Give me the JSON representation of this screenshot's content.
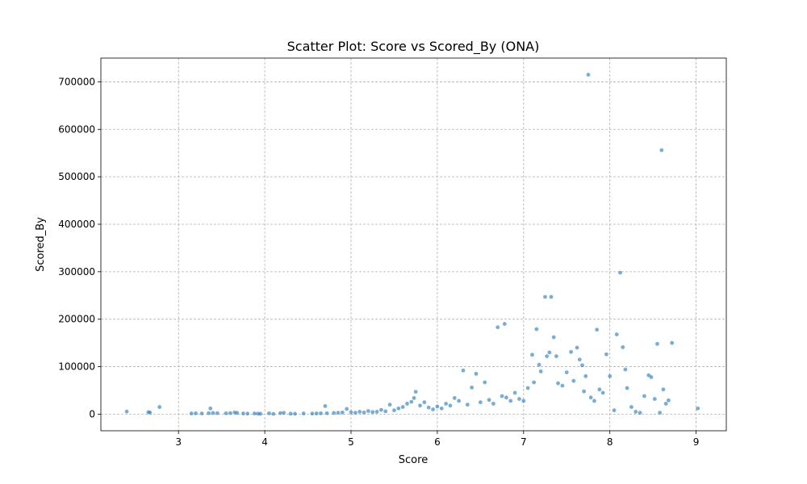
{
  "chart_data": {
    "type": "scatter",
    "title": "Scatter Plot: Score vs Scored_By (ONA)",
    "xlabel": "Score",
    "ylabel": "Scored_By",
    "xlim": [
      2.1,
      9.35
    ],
    "ylim": [
      -35000,
      750000
    ],
    "x_ticks": [
      3,
      4,
      5,
      6,
      7,
      8,
      9
    ],
    "x_tick_labels": [
      "3",
      "4",
      "5",
      "6",
      "7",
      "8",
      "9"
    ],
    "y_ticks": [
      0,
      100000,
      200000,
      300000,
      400000,
      500000,
      600000,
      700000
    ],
    "y_tick_labels": [
      "0",
      "100000",
      "200000",
      "300000",
      "400000",
      "500000",
      "600000",
      "700000"
    ],
    "grid": true,
    "marker_color": "#1f77b4",
    "series": [
      {
        "points": [
          [
            2.4,
            5500
          ],
          [
            2.65,
            4000
          ],
          [
            2.67,
            3500
          ],
          [
            2.78,
            15000
          ],
          [
            3.15,
            1500
          ],
          [
            3.2,
            1800
          ],
          [
            3.27,
            1500
          ],
          [
            3.35,
            2000
          ],
          [
            3.37,
            12000
          ],
          [
            3.4,
            2500
          ],
          [
            3.45,
            2000
          ],
          [
            3.55,
            1800
          ],
          [
            3.6,
            2200
          ],
          [
            3.65,
            3500
          ],
          [
            3.68,
            2500
          ],
          [
            3.75,
            1500
          ],
          [
            3.8,
            1200
          ],
          [
            3.88,
            1500
          ],
          [
            3.92,
            1000
          ],
          [
            3.95,
            800
          ],
          [
            4.05,
            1800
          ],
          [
            4.1,
            500
          ],
          [
            4.18,
            2200
          ],
          [
            4.22,
            2800
          ],
          [
            4.3,
            1000
          ],
          [
            4.35,
            800
          ],
          [
            4.45,
            1500
          ],
          [
            4.55,
            1200
          ],
          [
            4.6,
            1500
          ],
          [
            4.65,
            1800
          ],
          [
            4.7,
            17000
          ],
          [
            4.72,
            2000
          ],
          [
            4.8,
            2500
          ],
          [
            4.85,
            3000
          ],
          [
            4.9,
            3500
          ],
          [
            4.95,
            11000
          ],
          [
            5.0,
            4000
          ],
          [
            5.05,
            3000
          ],
          [
            5.1,
            5000
          ],
          [
            5.15,
            3500
          ],
          [
            5.2,
            6500
          ],
          [
            5.25,
            4500
          ],
          [
            5.3,
            5000
          ],
          [
            5.35,
            9000
          ],
          [
            5.4,
            6000
          ],
          [
            5.45,
            20000
          ],
          [
            5.5,
            8000
          ],
          [
            5.55,
            12000
          ],
          [
            5.6,
            15000
          ],
          [
            5.65,
            22000
          ],
          [
            5.7,
            26000
          ],
          [
            5.73,
            34000
          ],
          [
            5.75,
            47000
          ],
          [
            5.8,
            18000
          ],
          [
            5.85,
            25000
          ],
          [
            5.9,
            14000
          ],
          [
            5.95,
            10000
          ],
          [
            6.0,
            16000
          ],
          [
            6.05,
            12000
          ],
          [
            6.1,
            22000
          ],
          [
            6.15,
            18000
          ],
          [
            6.2,
            34000
          ],
          [
            6.25,
            28000
          ],
          [
            6.3,
            92000
          ],
          [
            6.35,
            20000
          ],
          [
            6.4,
            56000
          ],
          [
            6.45,
            85000
          ],
          [
            6.5,
            25000
          ],
          [
            6.55,
            67000
          ],
          [
            6.6,
            30000
          ],
          [
            6.65,
            22000
          ],
          [
            6.7,
            183000
          ],
          [
            6.75,
            38000
          ],
          [
            6.78,
            190000
          ],
          [
            6.8,
            35000
          ],
          [
            6.85,
            28000
          ],
          [
            6.9,
            45000
          ],
          [
            6.95,
            32000
          ],
          [
            7.0,
            28000
          ],
          [
            7.05,
            55000
          ],
          [
            7.1,
            125000
          ],
          [
            7.12,
            67000
          ],
          [
            7.15,
            179000
          ],
          [
            7.18,
            104000
          ],
          [
            7.2,
            90000
          ],
          [
            7.25,
            247000
          ],
          [
            7.27,
            122000
          ],
          [
            7.3,
            130000
          ],
          [
            7.32,
            247000
          ],
          [
            7.35,
            162000
          ],
          [
            7.38,
            122000
          ],
          [
            7.4,
            65000
          ],
          [
            7.45,
            60000
          ],
          [
            7.5,
            88000
          ],
          [
            7.55,
            131000
          ],
          [
            7.58,
            70000
          ],
          [
            7.62,
            140000
          ],
          [
            7.65,
            115000
          ],
          [
            7.68,
            103000
          ],
          [
            7.7,
            48000
          ],
          [
            7.72,
            80000
          ],
          [
            7.75,
            715000
          ],
          [
            7.78,
            35000
          ],
          [
            7.82,
            28000
          ],
          [
            7.85,
            178000
          ],
          [
            7.88,
            52000
          ],
          [
            7.92,
            45000
          ],
          [
            7.96,
            126000
          ],
          [
            8.0,
            80000
          ],
          [
            8.05,
            8000
          ],
          [
            8.08,
            168000
          ],
          [
            8.12,
            298000
          ],
          [
            8.15,
            141000
          ],
          [
            8.18,
            94000
          ],
          [
            8.2,
            55000
          ],
          [
            8.25,
            15000
          ],
          [
            8.3,
            5000
          ],
          [
            8.35,
            3000
          ],
          [
            8.4,
            38000
          ],
          [
            8.45,
            82000
          ],
          [
            8.48,
            78000
          ],
          [
            8.52,
            32000
          ],
          [
            8.55,
            148000
          ],
          [
            8.58,
            3000
          ],
          [
            8.6,
            556000
          ],
          [
            8.62,
            52000
          ],
          [
            8.65,
            22000
          ],
          [
            8.68,
            29000
          ],
          [
            8.72,
            150000
          ],
          [
            9.02,
            12000
          ]
        ]
      }
    ]
  }
}
